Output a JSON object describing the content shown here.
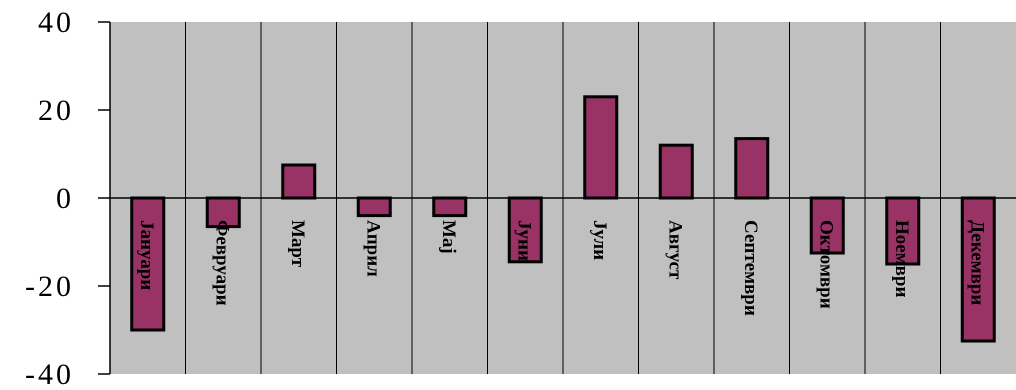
{
  "chart_data": {
    "type": "bar",
    "title": "",
    "xlabel": "",
    "ylabel": "",
    "ylim": [
      -40,
      40
    ],
    "yticks": [
      40,
      20,
      0,
      -20,
      -40
    ],
    "ytick_labels": [
      "40",
      "20",
      "0",
      "-20",
      "-40"
    ],
    "categories": [
      "Јануари",
      "Февруари",
      "Март",
      "Април",
      "Мај",
      "Јуни",
      "Јули",
      "Август",
      "Септември",
      "Октомври",
      "Ноември",
      "Декември"
    ],
    "values": [
      -30,
      -6.5,
      7.5,
      -4,
      -4,
      -14.5,
      23,
      12,
      13.5,
      -12.5,
      -15,
      -32.5
    ],
    "grid": "vertical",
    "legend": "none",
    "colors": {
      "plot_background": "#c0c0c0",
      "bar_fill": "#993366",
      "bar_stroke": "#000000",
      "grid": "#000000",
      "axis": "#000000"
    }
  }
}
